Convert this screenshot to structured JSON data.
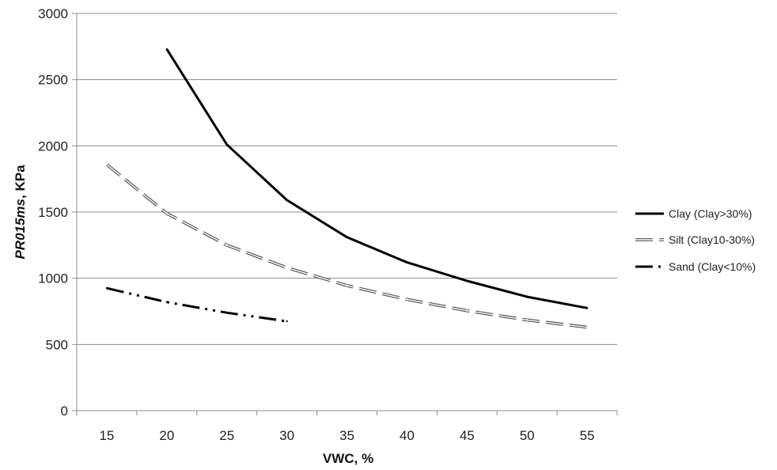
{
  "chart_data": {
    "type": "line",
    "xlabel": "VWC, %",
    "ylabel_italic": "PR015ms",
    "ylabel_rest": ", KPa",
    "x_ticks": [
      15,
      20,
      25,
      30,
      35,
      40,
      45,
      50,
      55
    ],
    "y_ticks": [
      0,
      500,
      1000,
      1500,
      2000,
      2500,
      3000
    ],
    "xlim": [
      12.5,
      57.5
    ],
    "ylim": [
      0,
      3000
    ],
    "grid": "horizontal",
    "legend_position": "right",
    "series": [
      {
        "name": "Clay (Clay>30%)",
        "style": "solid",
        "color": "#000000",
        "x": [
          20,
          25,
          30,
          35,
          40,
          45,
          50,
          55
        ],
        "y": [
          2730,
          2010,
          1590,
          1310,
          1120,
          980,
          860,
          775
        ]
      },
      {
        "name": "Silt (Clay10-30%)",
        "style": "dashed-hollow",
        "color": "#555555",
        "x": [
          15,
          20,
          25,
          30,
          35,
          40,
          45,
          50,
          55
        ],
        "y": [
          1860,
          1490,
          1250,
          1080,
          945,
          840,
          755,
          685,
          630
        ]
      },
      {
        "name": "Sand (Clay<10%)",
        "style": "dash-dot-dot",
        "color": "#000000",
        "x": [
          15,
          20,
          25,
          30
        ],
        "y": [
          925,
          820,
          740,
          675
        ]
      }
    ]
  }
}
